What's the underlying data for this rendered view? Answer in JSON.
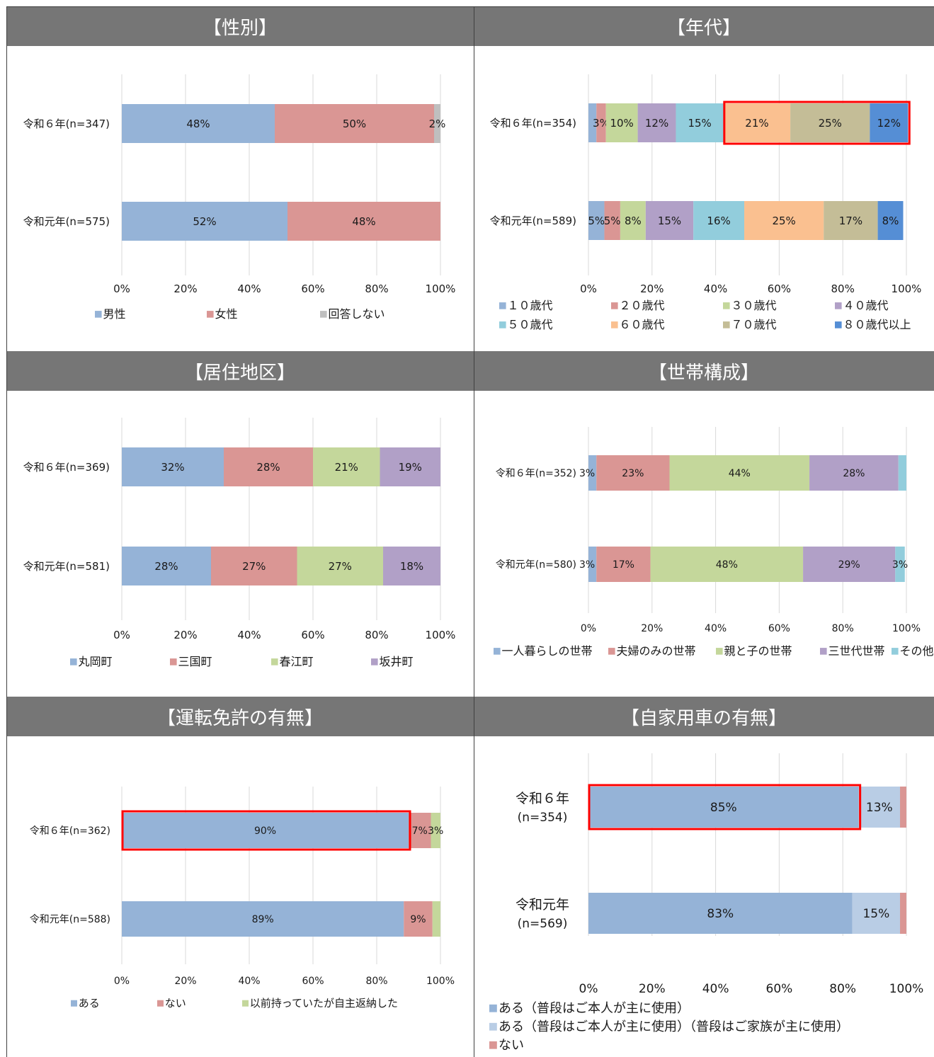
{
  "colors": {
    "header_bg": "#767676",
    "grid": "#d9d9d9",
    "highlight": "#ff0000"
  },
  "chart_data": [
    {
      "type": "bar",
      "title": "【性別】",
      "categories": [
        "令和６年(n=347)",
        "令和元年(n=575)"
      ],
      "series": [
        {
          "name": "男性",
          "values": [
            48,
            52
          ],
          "color": "#95b3d7"
        },
        {
          "name": "女性",
          "values": [
            50,
            48
          ],
          "color": "#da9694"
        },
        {
          "name": "回答しない",
          "values": [
            2,
            0
          ],
          "color": "#bfbfbf"
        }
      ],
      "xlim": [
        0,
        100
      ],
      "ticks": [
        "0%",
        "20%",
        "40%",
        "60%",
        "80%",
        "100%"
      ],
      "stacked": true,
      "legend": "bottom",
      "grid": true
    },
    {
      "type": "bar",
      "title": "【年代】",
      "categories": [
        "令和６年(n=354)",
        "令和元年(n=589)"
      ],
      "series": [
        {
          "name": "１０歳代",
          "values": [
            2.5,
            5
          ],
          "color": "#95b3d7",
          "labels": [
            "",
            "5%"
          ]
        },
        {
          "name": "２０歳代",
          "values": [
            3,
            5
          ],
          "color": "#da9694",
          "labels": [
            "3%",
            "5%"
          ]
        },
        {
          "name": "３０歳代",
          "values": [
            10,
            8
          ],
          "color": "#c4d79b",
          "labels": [
            "10%",
            "8%"
          ]
        },
        {
          "name": "４０歳代",
          "values": [
            12,
            15
          ],
          "color": "#b1a0c7",
          "labels": [
            "12%",
            "15%"
          ]
        },
        {
          "name": "５０歳代",
          "values": [
            15,
            16
          ],
          "color": "#92cddc",
          "labels": [
            "15%",
            "16%"
          ]
        },
        {
          "name": "６０歳代",
          "values": [
            21,
            25
          ],
          "color": "#fac090",
          "labels": [
            "21%",
            "25%"
          ]
        },
        {
          "name": "７０歳代",
          "values": [
            25,
            17
          ],
          "color": "#c4bd97",
          "labels": [
            "25%",
            "17%"
          ]
        },
        {
          "name": "８０歳代以上",
          "values": [
            12,
            8
          ],
          "color": "#558ed5",
          "labels": [
            "12%",
            "8%"
          ]
        }
      ],
      "xlim": [
        0,
        100
      ],
      "ticks": [
        "0%",
        "20%",
        "40%",
        "60%",
        "80%",
        "100%"
      ],
      "stacked": true,
      "legend": "bottom",
      "grid": true,
      "highlight": {
        "row": 0,
        "from_series": 5,
        "to_series": 7
      }
    },
    {
      "type": "bar",
      "title": "【居住地区】",
      "categories": [
        "令和６年(n=369)",
        "令和元年(n=581)"
      ],
      "series": [
        {
          "name": "丸岡町",
          "values": [
            32,
            28
          ],
          "color": "#95b3d7"
        },
        {
          "name": "三国町",
          "values": [
            28,
            27
          ],
          "color": "#da9694"
        },
        {
          "name": "春江町",
          "values": [
            21,
            27
          ],
          "color": "#c4d79b"
        },
        {
          "name": "坂井町",
          "values": [
            19,
            18
          ],
          "color": "#b1a0c7"
        }
      ],
      "xlim": [
        0,
        100
      ],
      "ticks": [
        "0%",
        "20%",
        "40%",
        "60%",
        "80%",
        "100%"
      ],
      "stacked": true,
      "legend": "bottom",
      "grid": true
    },
    {
      "type": "bar",
      "title": "【世帯構成】",
      "categories": [
        "令和６年(n=352)",
        "令和元年(n=580)"
      ],
      "series": [
        {
          "name": "一人暮らしの世帯",
          "values": [
            2.5,
            2.5
          ],
          "color": "#95b3d7",
          "labels": [
            "3%",
            "3%"
          ],
          "label_pos": "before"
        },
        {
          "name": "夫婦のみの世帯",
          "values": [
            23,
            17
          ],
          "color": "#da9694"
        },
        {
          "name": "親と子の世帯",
          "values": [
            44,
            48
          ],
          "color": "#c4d79b"
        },
        {
          "name": "三世代世帯",
          "values": [
            28,
            29
          ],
          "color": "#b1a0c7"
        },
        {
          "name": "その他",
          "values": [
            2.5,
            3
          ],
          "color": "#92cddc",
          "labels": [
            "",
            "3%"
          ]
        }
      ],
      "xlim": [
        0,
        100
      ],
      "ticks": [
        "0%",
        "20%",
        "40%",
        "60%",
        "80%",
        "100%"
      ],
      "stacked": true,
      "legend": "bottom",
      "grid": true
    },
    {
      "type": "bar",
      "title": "【運転免許の有無】",
      "categories": [
        "令和６年(n=362)",
        "令和元年(n=588)"
      ],
      "series": [
        {
          "name": "ある",
          "values": [
            90,
            88.5
          ],
          "color": "#95b3d7",
          "labels": [
            "90%",
            "89%"
          ]
        },
        {
          "name": "ない",
          "values": [
            7,
            9
          ],
          "color": "#da9694",
          "labels": [
            "7%",
            "9%"
          ]
        },
        {
          "name": "以前持っていたが自主返納した",
          "values": [
            3,
            2.5
          ],
          "color": "#c4d79b",
          "labels": [
            "3%",
            ""
          ]
        }
      ],
      "xlim": [
        0,
        100
      ],
      "ticks": [
        "0%",
        "20%",
        "40%",
        "60%",
        "80%",
        "100%"
      ],
      "stacked": true,
      "legend": "bottom",
      "grid": true,
      "highlight": {
        "row": 0,
        "from_series": 0,
        "to_series": 0
      }
    },
    {
      "type": "bar",
      "title": "【自家用車の有無】",
      "categories": [
        [
          "令和６年",
          "(n=354)"
        ],
        [
          "令和元年",
          "(n=569)"
        ]
      ],
      "series": [
        {
          "name": "ある（普段はご本人が主に使用）",
          "values": [
            85,
            83
          ],
          "color": "#95b3d7",
          "labels": [
            "85%",
            "83%"
          ]
        },
        {
          "name": "ある（普段はご本人が主に使用）（普段はご家族が主に使用）",
          "values": [
            13,
            15
          ],
          "color": "#b9cde5",
          "labels": [
            "13%",
            "15%"
          ]
        },
        {
          "name": "ない",
          "values": [
            2,
            2
          ],
          "color": "#da9694",
          "labels": [
            "",
            ""
          ]
        }
      ],
      "xlim": [
        0,
        100
      ],
      "ticks": [
        "0%",
        "20%",
        "40%",
        "60%",
        "80%",
        "100%"
      ],
      "stacked": true,
      "legend": "bottom",
      "grid": true,
      "highlight": {
        "row": 0,
        "from_series": 0,
        "to_series": 0
      }
    }
  ]
}
